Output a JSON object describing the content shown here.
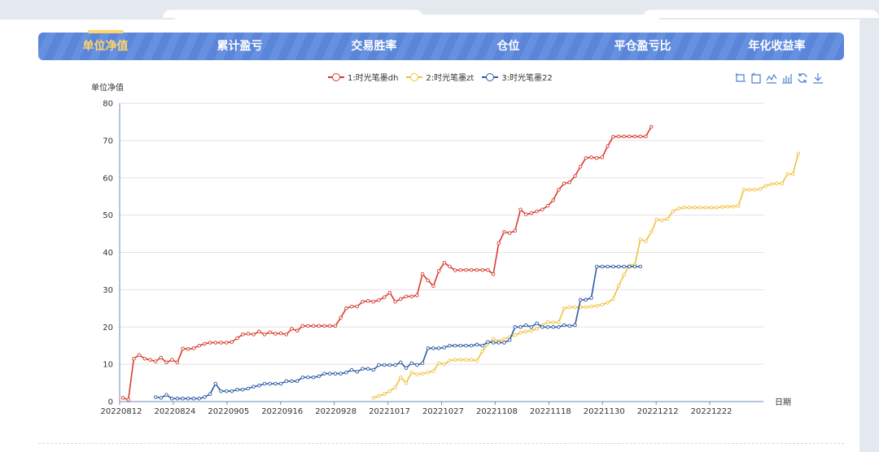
{
  "tabs": [
    {
      "label": "单位净值",
      "active": true
    },
    {
      "label": "累计盈亏",
      "active": false
    },
    {
      "label": "交易胜率",
      "active": false
    },
    {
      "label": "仓位",
      "active": false
    },
    {
      "label": "平仓盈亏比",
      "active": false
    },
    {
      "label": "年化收益率",
      "active": false
    }
  ],
  "legend": [
    {
      "label": "1:时光笔墨dh",
      "color": "#d93a2b"
    },
    {
      "label": "2:时光笔墨zt",
      "color": "#f0c13c"
    },
    {
      "label": "3:时光笔墨22",
      "color": "#2d5aa8"
    }
  ],
  "toolbox": [
    "zoom-icon",
    "zoom-reset-icon",
    "line-chart-icon",
    "bar-chart-icon",
    "refresh-icon",
    "download-icon"
  ],
  "chart_data": {
    "type": "line",
    "ylabel": "单位净值",
    "xlabel": "日期",
    "ylim": [
      0,
      80
    ],
    "yticks": [
      0,
      10,
      20,
      30,
      40,
      50,
      60,
      70,
      80
    ],
    "xticks": [
      "20220812",
      "20220824",
      "20220905",
      "20220916",
      "20220928",
      "20221017",
      "20221027",
      "20221108",
      "20221118",
      "20221130",
      "20221212",
      "20221222"
    ],
    "n_points": 118,
    "series": [
      {
        "name": "1:时光笔墨dh",
        "color": "#d93a2b",
        "values": [
          1,
          0.5,
          11.5,
          12.5,
          11.5,
          11.2,
          10.8,
          11.8,
          10.5,
          11.2,
          10.5,
          14.2,
          14.1,
          14.3,
          15.0,
          15.5,
          15.8,
          15.8,
          15.8,
          15.8,
          16.0,
          17.0,
          18.0,
          18.2,
          18.0,
          18.8,
          18.0,
          18.6,
          18.2,
          18.3,
          18.0,
          19.5,
          19.0,
          20.3,
          20.3,
          20.3,
          20.3,
          20.3,
          20.3,
          20.3,
          22.5,
          25.0,
          25.5,
          25.5,
          26.8,
          27.0,
          26.8,
          27.2,
          28.0,
          29.2,
          26.8,
          27.5,
          28.2,
          28.2,
          28.5,
          34.2,
          32.5,
          31.0,
          35.0,
          37.2,
          36.2,
          35.2,
          35.3,
          35.3,
          35.3,
          35.3,
          35.3,
          35.3,
          34.2,
          42.5,
          45.5,
          45.2,
          45.8,
          51.5,
          50.2,
          50.5,
          51.0,
          51.5,
          52.5,
          54.0,
          56.8,
          58.5,
          58.8,
          60.5,
          63.0,
          65.3,
          65.5,
          65.3,
          65.5,
          68.5,
          71.0,
          71.1,
          71.1,
          71.1,
          71.1,
          71.1,
          71.1,
          73.7
        ],
        "start": 0
      },
      {
        "name": "2:时光笔墨zt",
        "color": "#f0c13c",
        "values": [
          1,
          1.5,
          2.0,
          2.8,
          3.8,
          6.5,
          5.0,
          7.8,
          7.3,
          7.5,
          7.8,
          8.2,
          10.3,
          10.0,
          11.0,
          11.2,
          11.2,
          11.2,
          11.2,
          11.0,
          13.5,
          15.5,
          16.8,
          16.2,
          16.8,
          17.3,
          17.8,
          18.5,
          18.8,
          19.0,
          19.5,
          20.5,
          21.3,
          21.2,
          21.3,
          25.0,
          25.3,
          25.3,
          25.3,
          25.3,
          25.5,
          25.7,
          26.0,
          26.5,
          27.5,
          31.0,
          34.0,
          36.5,
          36.8,
          43.5,
          43.0,
          45.5,
          48.8,
          48.6,
          49.0,
          51.0,
          51.8,
          52.0,
          52.0,
          52.0,
          52.0,
          52.0,
          52.0,
          52.0,
          52.2,
          52.3,
          52.3,
          52.5,
          56.8,
          56.8,
          56.8,
          57.0,
          57.8,
          58.3,
          58.5,
          58.5,
          61.0,
          61.0,
          66.5
        ],
        "start": 46
      },
      {
        "name": "3:时光笔墨22",
        "color": "#2d5aa8",
        "values": [
          1.2,
          1.0,
          1.8,
          0.8,
          0.8,
          0.8,
          0.8,
          0.8,
          0.8,
          1.2,
          2.0,
          4.8,
          2.8,
          2.8,
          2.8,
          3.2,
          3.2,
          3.5,
          4.0,
          4.3,
          4.8,
          4.8,
          4.8,
          4.8,
          5.5,
          5.5,
          5.5,
          6.5,
          6.5,
          6.5,
          6.8,
          7.5,
          7.5,
          7.5,
          7.5,
          7.8,
          8.5,
          8.0,
          8.8,
          8.8,
          8.5,
          9.8,
          9.8,
          9.8,
          9.8,
          10.5,
          9.0,
          10.3,
          9.8,
          10.3,
          14.3,
          14.3,
          14.3,
          14.5,
          15.0,
          15.0,
          15.0,
          15.0,
          15.0,
          15.3,
          15.0,
          16.0,
          15.8,
          15.8,
          15.8,
          16.5,
          20.0,
          20.0,
          20.5,
          20.0,
          21.0,
          20.0,
          20.0,
          20.0,
          20.0,
          20.5,
          20.3,
          20.5,
          27.3,
          27.3,
          27.8,
          36.2,
          36.2,
          36.2,
          36.2,
          36.2,
          36.2,
          36.2,
          36.2,
          36.2
        ],
        "start": 6
      }
    ]
  }
}
